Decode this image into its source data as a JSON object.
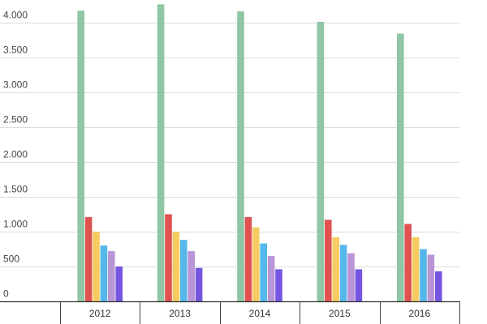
{
  "chart_data": {
    "type": "bar",
    "title": "",
    "xlabel": "",
    "ylabel": "",
    "categories": [
      "2012",
      "2013",
      "2014",
      "2015",
      "2016"
    ],
    "series": [
      {
        "values": [
          4170,
          4260,
          4160,
          4010,
          3840
        ],
        "color": "#8fc6a4"
      },
      {
        "values": [
          1210,
          1250,
          1210,
          1170,
          1110
        ],
        "color": "#e05252"
      },
      {
        "values": [
          1000,
          1000,
          1060,
          920,
          920
        ],
        "color": "#f5cb62"
      },
      {
        "values": [
          800,
          880,
          830,
          810,
          750
        ],
        "color": "#55b7ea"
      },
      {
        "values": [
          720,
          720,
          650,
          690,
          670
        ],
        "color": "#b896d6"
      },
      {
        "values": [
          500,
          480,
          460,
          460,
          430
        ],
        "color": "#7656e0"
      }
    ],
    "yticks": [
      {
        "value": 0,
        "label": "0"
      },
      {
        "value": 500,
        "label": "500"
      },
      {
        "value": 1000,
        "label": "1.000"
      },
      {
        "value": 1500,
        "label": "1.500"
      },
      {
        "value": 2000,
        "label": "2.000"
      },
      {
        "value": 2500,
        "label": "2.500"
      },
      {
        "value": 3000,
        "label": "3.000"
      },
      {
        "value": 3500,
        "label": "3.500"
      },
      {
        "value": 4000,
        "label": "4.000"
      }
    ],
    "ylim": [
      0,
      4300
    ],
    "grid": true,
    "legend": "none"
  }
}
